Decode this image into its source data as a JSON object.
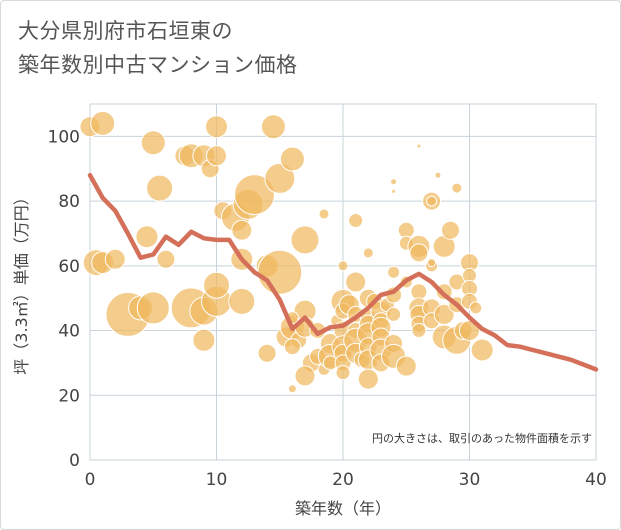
{
  "title": "大分県別府市石垣東の\n築年数別中古マンション価格",
  "chart_data": {
    "type": "scatter",
    "title": "大分県別府市石垣東の築年数別中古マンション価格",
    "xlabel": "築年数（年）",
    "ylabel": "坪（3.3㎡）単価（万円）",
    "xlim": [
      0,
      40
    ],
    "ylim": [
      0,
      110
    ],
    "xticks": [
      0,
      10,
      20,
      30,
      40
    ],
    "yticks": [
      0,
      20,
      40,
      60,
      80,
      100
    ],
    "grid": true,
    "annotation": "円の大きさは、取引のあった物件面積を示す",
    "colors": {
      "bubble": "#f0b95e",
      "line": "#d4705a",
      "grid": "#c8d3da"
    },
    "series": [
      {
        "kind": "bubble",
        "points": [
          [
            0,
            103,
            10
          ],
          [
            1,
            104,
            12
          ],
          [
            0.5,
            61,
            13
          ],
          [
            1,
            61,
            11
          ],
          [
            2,
            62,
            10
          ],
          [
            3,
            45,
            22
          ],
          [
            4,
            47,
            12
          ],
          [
            4.5,
            69,
            11
          ],
          [
            5,
            47,
            16
          ],
          [
            5,
            98,
            12
          ],
          [
            5.5,
            84,
            13
          ],
          [
            6,
            62,
            9
          ],
          [
            7.5,
            94,
            10
          ],
          [
            8,
            94,
            12
          ],
          [
            8,
            47,
            20
          ],
          [
            9,
            37,
            11
          ],
          [
            9,
            46,
            14
          ],
          [
            9,
            94,
            11
          ],
          [
            9.5,
            90,
            9
          ],
          [
            10,
            94,
            10
          ],
          [
            10,
            103,
            11
          ],
          [
            10,
            49,
            15
          ],
          [
            10,
            54,
            13
          ],
          [
            10.5,
            77,
            9
          ],
          [
            11.5,
            75,
            14
          ],
          [
            12,
            71,
            10
          ],
          [
            12,
            49,
            13
          ],
          [
            12,
            62,
            11
          ],
          [
            12.5,
            79,
            15
          ],
          [
            13,
            82,
            20
          ],
          [
            14,
            60,
            11
          ],
          [
            14,
            33,
            9
          ],
          [
            15,
            87,
            15
          ],
          [
            14.5,
            103,
            12
          ],
          [
            15,
            58,
            22
          ],
          [
            15.5,
            38,
            10
          ],
          [
            16,
            93,
            12
          ],
          [
            16,
            41,
            12
          ],
          [
            16.5,
            37,
            8
          ],
          [
            16,
            35,
            8
          ],
          [
            17,
            68,
            14
          ],
          [
            17,
            46,
            11
          ],
          [
            17,
            41,
            10
          ],
          [
            17.5,
            30,
            9
          ],
          [
            17,
            26,
            10
          ],
          [
            18,
            40,
            8
          ],
          [
            18,
            32,
            8
          ],
          [
            18.5,
            76,
            5
          ],
          [
            18.5,
            28,
            6
          ],
          [
            19,
            36,
            10
          ],
          [
            19,
            32,
            12
          ],
          [
            19,
            30,
            7
          ],
          [
            19.5,
            43,
            6
          ],
          [
            20,
            49,
            12
          ],
          [
            20,
            46,
            8
          ],
          [
            20,
            40,
            9
          ],
          [
            20,
            35,
            11
          ],
          [
            20,
            33,
            9
          ],
          [
            20,
            30,
            8
          ],
          [
            20,
            27,
            7
          ],
          [
            20,
            60,
            5
          ],
          [
            20.5,
            48,
            10
          ],
          [
            21,
            74,
            7
          ],
          [
            21,
            55,
            10
          ],
          [
            21,
            40,
            8
          ],
          [
            21,
            37,
            12
          ],
          [
            21,
            33,
            10
          ],
          [
            21,
            45,
            8
          ],
          [
            21.5,
            31,
            8
          ],
          [
            22,
            64,
            5
          ],
          [
            22,
            50,
            9
          ],
          [
            22,
            44,
            8
          ],
          [
            22,
            42,
            9
          ],
          [
            22,
            39,
            11
          ],
          [
            22,
            35,
            9
          ],
          [
            22,
            31,
            10
          ],
          [
            22,
            25,
            10
          ],
          [
            22.5,
            49,
            8
          ],
          [
            23,
            46,
            10
          ],
          [
            23,
            43,
            8
          ],
          [
            23,
            41,
            10
          ],
          [
            23,
            38,
            9
          ],
          [
            23,
            34,
            11
          ],
          [
            23,
            30,
            9
          ],
          [
            23.5,
            48,
            7
          ],
          [
            24,
            58,
            6
          ],
          [
            24,
            51,
            8
          ],
          [
            24,
            45,
            7
          ],
          [
            24,
            36,
            9
          ],
          [
            24,
            32,
            12
          ],
          [
            24,
            86,
            3
          ],
          [
            24,
            83,
            2
          ],
          [
            25,
            71,
            8
          ],
          [
            25,
            67,
            7
          ],
          [
            25,
            29,
            10
          ],
          [
            25,
            55,
            6
          ],
          [
            26,
            66,
            11
          ],
          [
            26,
            64,
            9
          ],
          [
            26,
            52,
            8
          ],
          [
            26,
            47,
            10
          ],
          [
            26,
            45,
            9
          ],
          [
            26,
            42,
            8
          ],
          [
            26,
            40,
            7
          ],
          [
            26,
            97,
            2
          ],
          [
            27,
            80,
            9
          ],
          [
            27,
            80,
            5
          ],
          [
            27,
            60,
            6
          ],
          [
            27,
            47,
            9
          ],
          [
            27,
            43,
            8
          ],
          [
            27,
            61,
            4
          ],
          [
            27.5,
            88,
            3
          ],
          [
            28,
            66,
            11
          ],
          [
            28,
            52,
            8
          ],
          [
            28,
            45,
            10
          ],
          [
            28,
            38,
            12
          ],
          [
            28.5,
            71,
            9
          ],
          [
            29,
            84,
            5
          ],
          [
            29,
            37,
            14
          ],
          [
            29,
            55,
            8
          ],
          [
            29,
            48,
            8
          ],
          [
            29.5,
            40,
            9
          ],
          [
            30,
            61,
            9
          ],
          [
            30,
            57,
            7
          ],
          [
            30,
            53,
            8
          ],
          [
            30,
            49,
            8
          ],
          [
            30,
            40,
            10
          ],
          [
            31,
            34,
            11
          ],
          [
            30.5,
            47,
            6
          ],
          [
            16,
            22,
            4
          ],
          [
            16,
            44,
            6
          ]
        ]
      },
      {
        "kind": "line",
        "points": [
          [
            0,
            88
          ],
          [
            1,
            81
          ],
          [
            2,
            77
          ],
          [
            3,
            70
          ],
          [
            4,
            62.5
          ],
          [
            5,
            63.5
          ],
          [
            6,
            69
          ],
          [
            7,
            66.5
          ],
          [
            8,
            70.5
          ],
          [
            9,
            68.5
          ],
          [
            10,
            68
          ],
          [
            11,
            68
          ],
          [
            12,
            62
          ],
          [
            13,
            58
          ],
          [
            14,
            55.5
          ],
          [
            15,
            49.5
          ],
          [
            16,
            40.5
          ],
          [
            17,
            44
          ],
          [
            18,
            39
          ],
          [
            19,
            41
          ],
          [
            20,
            41.5
          ],
          [
            21,
            44
          ],
          [
            22,
            47
          ],
          [
            23,
            51
          ],
          [
            24,
            52
          ],
          [
            25,
            55.5
          ],
          [
            26,
            57.5
          ],
          [
            27,
            55
          ],
          [
            28,
            51
          ],
          [
            29,
            48
          ],
          [
            30,
            44
          ],
          [
            31,
            40.5
          ],
          [
            32,
            38.5
          ],
          [
            33,
            35.5
          ],
          [
            34,
            35
          ],
          [
            35,
            34
          ],
          [
            36,
            33
          ],
          [
            37,
            32
          ],
          [
            38,
            31
          ],
          [
            39,
            29.5
          ],
          [
            40,
            28
          ]
        ]
      }
    ]
  }
}
